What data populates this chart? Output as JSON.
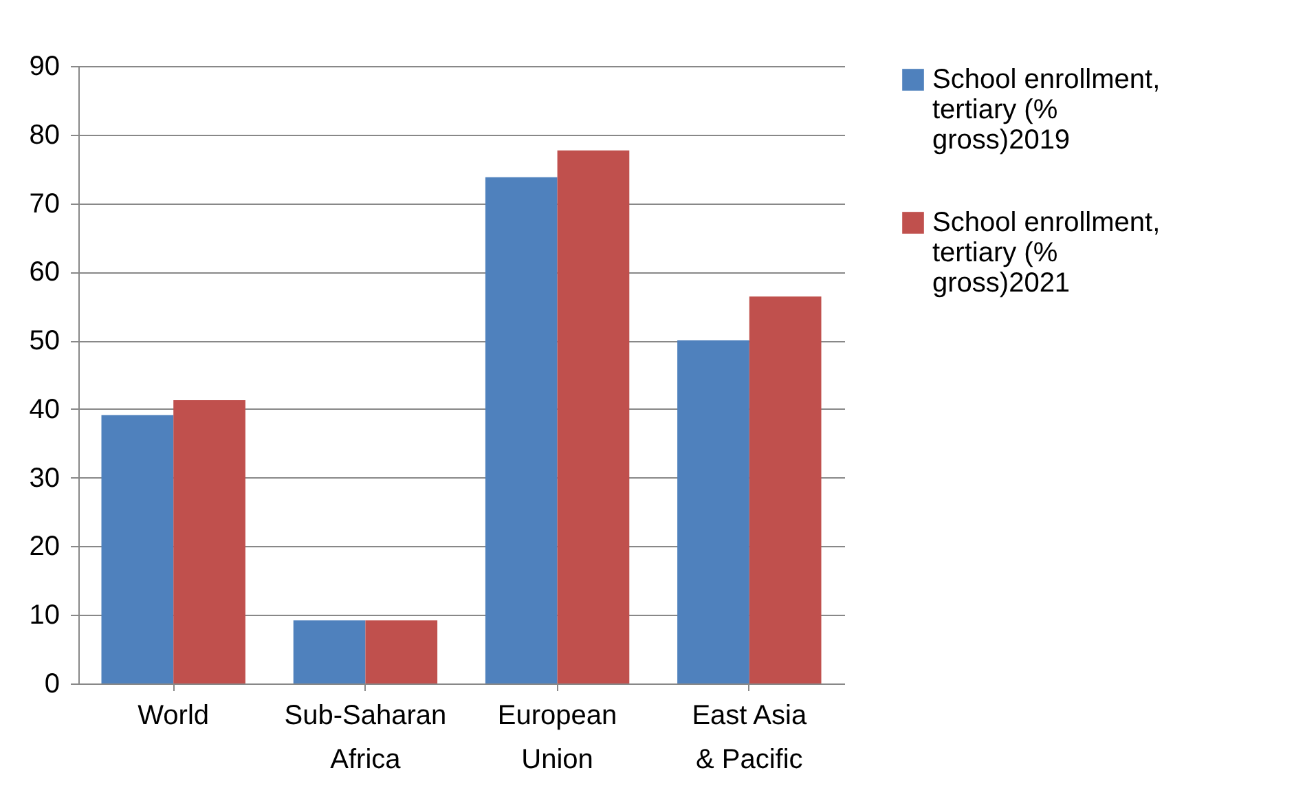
{
  "chart_data": {
    "type": "bar",
    "categories": [
      "World",
      "Sub-Saharan Africa",
      "European Union",
      "East Asia & Pacific"
    ],
    "series": [
      {
        "name": "School enrollment, tertiary (% gross)2019",
        "color": "#4f81bd",
        "values": [
          39.1,
          9.2,
          73.8,
          50.0
        ]
      },
      {
        "name": "School enrollment, tertiary (% gross)2021",
        "color": "#c0504d",
        "values": [
          41.3,
          9.2,
          77.7,
          56.4
        ]
      }
    ],
    "ylim": [
      0,
      90
    ],
    "yticks": [
      0,
      10,
      20,
      30,
      40,
      50,
      60,
      70,
      80,
      90
    ],
    "grid": "y",
    "legend": "right"
  }
}
